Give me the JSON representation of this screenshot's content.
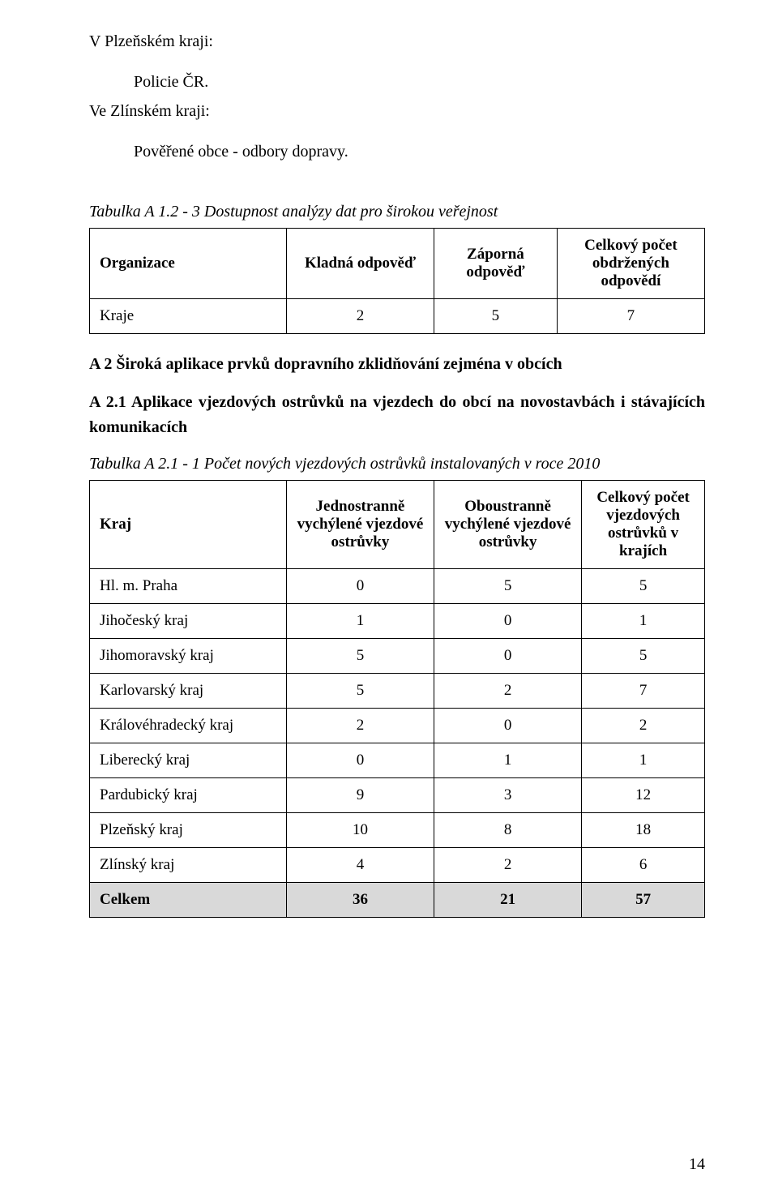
{
  "intro": {
    "lines": [
      "V Plzeňském kraji:",
      "Policie ČR.",
      "Ve Zlínském kraji:",
      "Pověřené obce - odbory dopravy."
    ]
  },
  "table1": {
    "caption": "Tabulka A 1.2 - 3 Dostupnost analýzy dat pro širokou veřejnost",
    "columns": [
      "Organizace",
      "Kladná odpověď",
      "Záporná odpověď",
      "Celkový počet obdržených odpovědí"
    ],
    "columns_align": [
      "left",
      "center",
      "center",
      "center"
    ],
    "rows": [
      [
        "Kraje",
        "2",
        "5",
        "7"
      ]
    ]
  },
  "sectionA2": {
    "heading": "A 2 Široká aplikace prvků dopravního zklidňování zejména v obcích",
    "subheading": "A 2.1 Aplikace vjezdových ostrůvků na vjezdech do obcí na novostavbách i stávajících komunikacích"
  },
  "table2": {
    "caption": "Tabulka A 2.1 - 1 Počet nových vjezdových ostrůvků instalovaných v roce 2010",
    "columns": [
      "Kraj",
      "Jednostranně vychýlené vjezdové ostrůvky",
      "Oboustranně vychýlené vjezdové ostrůvky",
      "Celkový počet vjezdových ostrůvků v krajích"
    ],
    "columns_align": [
      "left",
      "center",
      "center",
      "center"
    ],
    "rows": [
      [
        "Hl. m. Praha",
        "0",
        "5",
        "5"
      ],
      [
        "Jihočeský kraj",
        "1",
        "0",
        "1"
      ],
      [
        "Jihomoravský kraj",
        "5",
        "0",
        "5"
      ],
      [
        "Karlovarský kraj",
        "5",
        "2",
        "7"
      ],
      [
        "Královéhradecký kraj",
        "2",
        "0",
        "2"
      ],
      [
        "Liberecký kraj",
        "0",
        "1",
        "1"
      ],
      [
        "Pardubický kraj",
        "9",
        "3",
        "12"
      ],
      [
        "Plzeňský kraj",
        "10",
        "8",
        "18"
      ],
      [
        "Zlínský kraj",
        "4",
        "2",
        "6"
      ]
    ],
    "total_row": [
      "Celkem",
      "36",
      "21",
      "57"
    ]
  },
  "page_number": "14",
  "colors": {
    "text": "#000000",
    "background": "#ffffff",
    "border": "#000000",
    "shaded_row": "#d9d9d9"
  }
}
